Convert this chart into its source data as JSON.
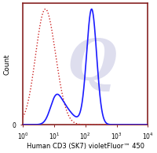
{
  "title": "",
  "xlabel": "Human CD3 (SK7) violetFluor™ 450",
  "ylabel": "Count",
  "xlim": [
    1,
    10000
  ],
  "ylim": [
    0,
    1.05
  ],
  "background_color": "#ffffff",
  "plot_bg_color": "#ffffff",
  "isotype_color": "#cc2222",
  "sample_color": "#1a1aff",
  "isotype_linestyle": "dotted",
  "sample_linestyle": "solid",
  "isotype_linewidth": 1.0,
  "sample_linewidth": 1.2,
  "xlabel_fontsize": 6.0,
  "ylabel_fontsize": 6.5,
  "tick_fontsize": 5.5,
  "watermark_color": "#d0d0e8",
  "watermark_alpha": 0.7,
  "border_color": "#882222",
  "border_linewidth": 1.2
}
